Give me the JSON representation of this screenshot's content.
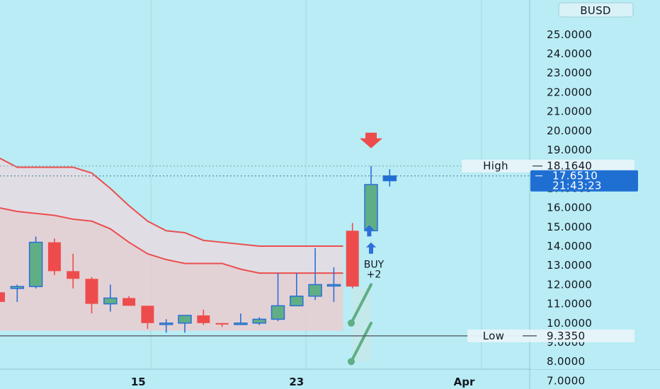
{
  "chart_data": {
    "type": "candlestick",
    "currency": "BUSD",
    "ylim": [
      6.5,
      25.6
    ],
    "y_ticks": [
      "7.0000",
      "8.0000",
      "9.0000",
      "10.0000",
      "11.0000",
      "12.0000",
      "13.0000",
      "14.0000",
      "15.0000",
      "16.0000",
      "17.0000",
      "19.0000",
      "20.0000",
      "21.0000",
      "22.0000",
      "23.0000",
      "24.0000",
      "25.0000"
    ],
    "x_ticks": [
      {
        "label": "15",
        "x": 7.5
      },
      {
        "label": "23",
        "x": 16
      },
      {
        "label": "Apr",
        "x": 25
      }
    ],
    "candles": [
      {
        "x": 0,
        "o": 11.6,
        "h": 11.9,
        "l": 11.0,
        "c": 11.1
      },
      {
        "x": 1,
        "o": 11.8,
        "h": 12.0,
        "l": 11.1,
        "c": 11.9
      },
      {
        "x": 2,
        "o": 11.9,
        "h": 14.5,
        "l": 11.8,
        "c": 14.2
      },
      {
        "x": 3,
        "o": 14.2,
        "h": 14.4,
        "l": 12.5,
        "c": 12.7
      },
      {
        "x": 4,
        "o": 12.7,
        "h": 13.6,
        "l": 11.8,
        "c": 12.3
      },
      {
        "x": 5,
        "o": 12.3,
        "h": 12.4,
        "l": 10.5,
        "c": 11.0
      },
      {
        "x": 6,
        "o": 11.0,
        "h": 12.0,
        "l": 10.6,
        "c": 11.3
      },
      {
        "x": 7,
        "o": 11.3,
        "h": 11.4,
        "l": 10.9,
        "c": 10.9
      },
      {
        "x": 8,
        "o": 10.9,
        "h": 10.9,
        "l": 9.7,
        "c": 10.0
      },
      {
        "x": 9,
        "o": 10.0,
        "h": 10.2,
        "l": 9.5,
        "c": 10.0
      },
      {
        "x": 10,
        "o": 10.0,
        "h": 10.4,
        "l": 9.5,
        "c": 10.4
      },
      {
        "x": 11,
        "o": 10.4,
        "h": 10.7,
        "l": 9.9,
        "c": 10.0
      },
      {
        "x": 12,
        "o": 10.0,
        "h": 10.0,
        "l": 9.8,
        "c": 9.95
      },
      {
        "x": 13,
        "o": 9.95,
        "h": 10.5,
        "l": 9.9,
        "c": 10.0
      },
      {
        "x": 14,
        "o": 10.0,
        "h": 10.3,
        "l": 9.9,
        "c": 10.2
      },
      {
        "x": 15,
        "o": 10.2,
        "h": 12.6,
        "l": 10.1,
        "c": 10.9
      },
      {
        "x": 16,
        "o": 10.9,
        "h": 12.6,
        "l": 10.9,
        "c": 11.4
      },
      {
        "x": 17,
        "o": 11.4,
        "h": 13.9,
        "l": 11.2,
        "c": 12.0
      },
      {
        "x": 18,
        "o": 12.0,
        "h": 12.9,
        "l": 11.1,
        "c": 12.0
      },
      {
        "x": 19,
        "o": 14.8,
        "h": 15.2,
        "l": 11.8,
        "c": 11.9
      },
      {
        "x": 20,
        "o": 14.8,
        "h": 18.16,
        "l": 14.8,
        "c": 17.2
      },
      {
        "x": 21,
        "o": 17.4,
        "h": 18.0,
        "l": 17.1,
        "c": 17.65
      }
    ],
    "upper_band": [
      [
        -0.8,
        19.0
      ],
      [
        0,
        18.6
      ],
      [
        1,
        18.1
      ],
      [
        4,
        18.1
      ],
      [
        5,
        17.8
      ],
      [
        6,
        17.0
      ],
      [
        7,
        16.1
      ],
      [
        8,
        15.3
      ],
      [
        9,
        14.8
      ],
      [
        10,
        14.7
      ],
      [
        11,
        14.3
      ],
      [
        12,
        14.2
      ],
      [
        14,
        14.0
      ],
      [
        15,
        14.0
      ],
      [
        18.5,
        14.0
      ]
    ],
    "lower_band": [
      [
        -0.8,
        16.2
      ],
      [
        0,
        16.0
      ],
      [
        1,
        15.8
      ],
      [
        3,
        15.6
      ],
      [
        4,
        15.4
      ],
      [
        5,
        15.3
      ],
      [
        6,
        14.9
      ],
      [
        7,
        14.2
      ],
      [
        8,
        13.6
      ],
      [
        9,
        13.3
      ],
      [
        10,
        13.1
      ],
      [
        12,
        13.1
      ],
      [
        13,
        12.8
      ],
      [
        14,
        12.6
      ],
      [
        15,
        12.6
      ],
      [
        18.5,
        12.6
      ]
    ],
    "high": {
      "label": "High",
      "value": "18.1640",
      "y": 18.164
    },
    "last": {
      "value": "17.6510",
      "countdown": "21:43:23",
      "y": 17.651
    },
    "low": {
      "label": "Low",
      "value": "9.3350",
      "y": 9.335
    },
    "signals": [
      {
        "type": "sell-arrow",
        "x": 20,
        "y": 19.6
      },
      {
        "type": "buy-arrow",
        "x": 20,
        "y": 13.9
      },
      {
        "type": "buy-arrow",
        "x": 19.9,
        "y": 14.8
      }
    ],
    "annotation": {
      "line1": "BUY",
      "line2": "+2",
      "x": 20,
      "y": 13.1
    },
    "projection": {
      "from_x": 20,
      "from_y": 12.0,
      "a_y": 10.0,
      "b_y": 8.0
    },
    "colors": {
      "background": "#b9ecf4",
      "up": "#5fae86",
      "up_edge": "#2b6fd8",
      "down": "#ee4c4c",
      "band": "#ea4e4e",
      "band_fill": "#f2c9cb",
      "signal_sell": "#ee4c4c",
      "signal_buy": "#2b6fd8",
      "last_bg": "#1f6fd3",
      "label_bg": "#e6f4f8",
      "projection": "#5fae86"
    }
  }
}
